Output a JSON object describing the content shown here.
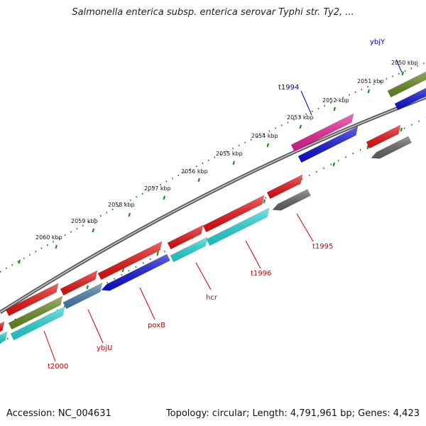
{
  "title": "Salmonella enterica subsp. enterica serovar Typhi str. Ty2, ...",
  "footer": {
    "accession": "Accession: NC_004631",
    "stats": "Topology: circular; Length: 4,791,961 bp; Genes: 4,423"
  },
  "colors": {
    "red": "#ee1111",
    "olive": "#6b8e23",
    "blue": "#1111dd",
    "cyan": "#22dddd",
    "steelblue": "#4a7fb0",
    "magenta": "#ee2299",
    "gray": "#666666",
    "backbone": "#888888",
    "tick": "#228b22",
    "label_red": "#cc0000",
    "label_blue": "#0000bb"
  },
  "kbp_ticks": [
    "2050 kbp",
    "2051 kbp",
    "2052 kbp",
    "2053 kbp",
    "2054 kbp",
    "2055 kbp",
    "2056 kbp",
    "2057 kbp",
    "2058 kbp",
    "2059 kbp",
    "2060 kbp"
  ],
  "gene_labels": [
    {
      "text": "ybjY",
      "color": "blue"
    },
    {
      "text": "t1994",
      "color": "blue"
    },
    {
      "text": "t1995",
      "color": "red"
    },
    {
      "text": "t1996",
      "color": "red"
    },
    {
      "text": "hcr",
      "color": "red"
    },
    {
      "text": "poxB",
      "color": "red"
    },
    {
      "text": "ybjU",
      "color": "red"
    },
    {
      "text": "t2000",
      "color": "red"
    }
  ]
}
